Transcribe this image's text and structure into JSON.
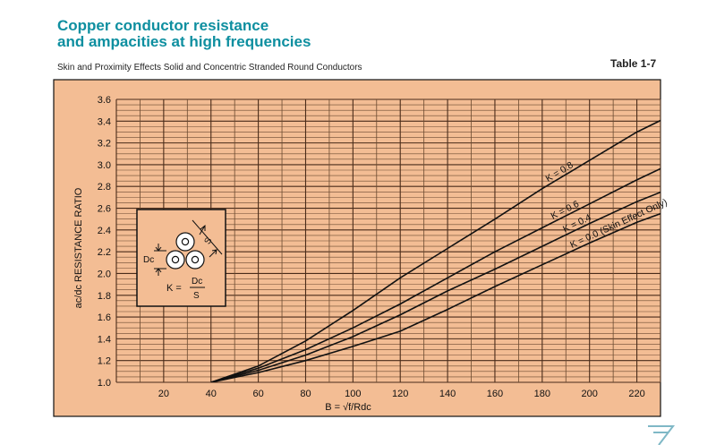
{
  "header": {
    "title_line1": "Copper conductor resistance",
    "title_line2": "and ampacities at high frequencies",
    "subtitle": "Skin and Proximity Effects Solid and Concentric Stranded Round Conductors",
    "table_label": "Table 1-7"
  },
  "inset": {
    "dc_label": "Dc",
    "s_label": "S",
    "k_label": "K =",
    "frac_num": "Dc",
    "frac_den": "S"
  },
  "chart_data": {
    "type": "line",
    "xlabel": "B = √f/Rdc",
    "ylabel": "ac/dc RESISTANCE RATIO",
    "xlim": [
      0,
      230
    ],
    "ylim": [
      1.0,
      3.6
    ],
    "x_ticks": [
      20,
      40,
      60,
      80,
      100,
      120,
      140,
      160,
      180,
      200,
      220
    ],
    "y_ticks": [
      1.0,
      1.2,
      1.4,
      1.6,
      1.8,
      2.0,
      2.2,
      2.4,
      2.6,
      2.8,
      3.0,
      3.2,
      3.4,
      3.6
    ],
    "grid": true,
    "series": [
      {
        "name": "K = 0.8",
        "x": [
          40,
          60,
          80,
          100,
          120,
          140,
          160,
          180,
          200,
          220,
          250
        ],
        "y": [
          1.0,
          1.15,
          1.38,
          1.66,
          1.96,
          2.23,
          2.5,
          2.78,
          3.04,
          3.3,
          3.62
        ]
      },
      {
        "name": "K = 0.6",
        "x": [
          40,
          60,
          80,
          100,
          120,
          140,
          160,
          180,
          200,
          220,
          250
        ],
        "y": [
          1.0,
          1.13,
          1.3,
          1.5,
          1.72,
          1.96,
          2.2,
          2.42,
          2.64,
          2.86,
          3.17
        ]
      },
      {
        "name": "K = 0.4",
        "x": [
          40,
          60,
          80,
          100,
          120,
          140,
          160,
          180,
          200,
          220,
          250
        ],
        "y": [
          1.0,
          1.11,
          1.25,
          1.42,
          1.62,
          1.84,
          2.04,
          2.25,
          2.46,
          2.66,
          2.92
        ]
      },
      {
        "name": "K = 0.0 (Skin Effect Only)",
        "x": [
          40,
          60,
          80,
          100,
          120,
          140,
          160,
          180,
          200,
          220,
          250
        ],
        "y": [
          1.0,
          1.09,
          1.2,
          1.33,
          1.47,
          1.67,
          1.88,
          2.08,
          2.28,
          2.47,
          2.71
        ]
      }
    ],
    "colors": {
      "plot_background": "#f3bd94",
      "grid_major": "#4a2c1a",
      "grid_minor": "#6b4a30",
      "line": "#111111",
      "title": "#0e8fa0"
    }
  }
}
